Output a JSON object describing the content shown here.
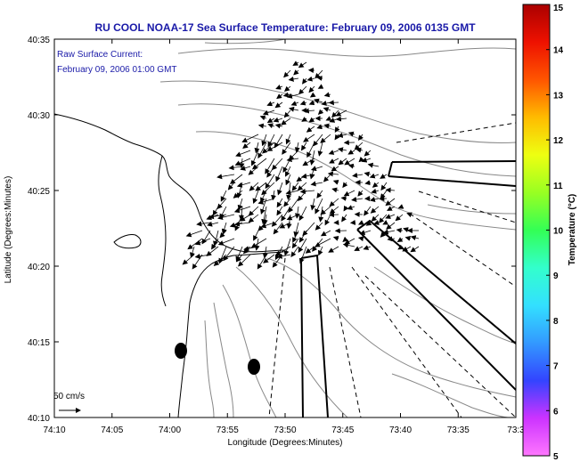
{
  "title": "RU COOL  NOAA-17  Sea Surface Temperature:  February 09, 2006 0135 GMT",
  "annotation": {
    "line1": "Raw Surface Current:",
    "line2": "February 09, 2006 01:00 GMT"
  },
  "scale_arrow_label": "50 cm/s",
  "axes": {
    "xlabel": "Longitude (Degrees:Minutes)",
    "ylabel": "Latitude (Degrees:Minutes)",
    "xticks": [
      "74:10",
      "74:05",
      "74:00",
      "73:55",
      "73:50",
      "73:45",
      "73:40",
      "73:35",
      "73:3"
    ],
    "yticks": [
      "40:35",
      "40:30",
      "40:25",
      "40:20",
      "40:15",
      "40:10"
    ]
  },
  "colorbar": {
    "label": "Temperature (°C)",
    "ticks": [
      "15",
      "14",
      "13",
      "12",
      "11",
      "10",
      "9",
      "8",
      "7",
      "6",
      "5"
    ],
    "min": 5,
    "max": 15,
    "colors": [
      "#ff77ff",
      "#cc33ff",
      "#3344ff",
      "#3399ff",
      "#33e0ff",
      "#33ffcc",
      "#33ff55",
      "#99ff22",
      "#eeff11",
      "#ffbb00",
      "#ff5500",
      "#ee1100",
      "#aa0000"
    ]
  },
  "colors": {
    "title": "#1a1aa8",
    "vectors": "#000000",
    "contours": "#888888"
  }
}
